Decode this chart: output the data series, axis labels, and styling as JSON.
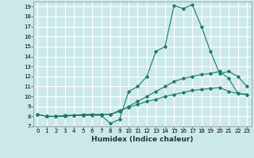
{
  "title": "",
  "xlabel": "Humidex (Indice chaleur)",
  "ylabel": "",
  "bg_color": "#cce9e9",
  "grid_color": "#ffffff",
  "line_color": "#1a7a6e",
  "xlim": [
    -0.5,
    23.5
  ],
  "ylim": [
    7,
    19.5
  ],
  "xticks": [
    0,
    1,
    2,
    3,
    4,
    5,
    6,
    7,
    8,
    9,
    10,
    11,
    12,
    13,
    14,
    15,
    16,
    17,
    18,
    19,
    20,
    21,
    22,
    23
  ],
  "yticks": [
    7,
    8,
    9,
    10,
    11,
    12,
    13,
    14,
    15,
    16,
    17,
    18,
    19
  ],
  "line1_x": [
    0,
    1,
    2,
    3,
    4,
    5,
    6,
    7,
    8,
    9,
    10,
    11,
    12,
    13,
    14,
    15,
    16,
    17,
    18,
    19,
    20,
    21,
    22,
    23
  ],
  "line1_y": [
    8.2,
    8.0,
    8.0,
    8.0,
    8.1,
    8.1,
    8.1,
    8.1,
    7.3,
    7.7,
    10.5,
    11.0,
    12.0,
    14.5,
    15.0,
    19.1,
    18.8,
    19.2,
    17.0,
    14.5,
    12.3,
    12.5,
    12.0,
    11.0
  ],
  "line2_x": [
    0,
    1,
    2,
    3,
    4,
    5,
    6,
    7,
    8,
    9,
    10,
    11,
    12,
    13,
    14,
    15,
    16,
    17,
    18,
    19,
    20,
    21,
    22,
    23
  ],
  "line2_y": [
    8.2,
    8.0,
    8.0,
    8.1,
    8.1,
    8.2,
    8.2,
    8.2,
    8.2,
    8.5,
    9.0,
    9.5,
    10.0,
    10.5,
    11.0,
    11.5,
    11.8,
    12.0,
    12.2,
    12.3,
    12.5,
    11.8,
    10.3,
    10.2
  ],
  "line3_x": [
    0,
    1,
    2,
    3,
    4,
    5,
    6,
    7,
    8,
    9,
    10,
    11,
    12,
    13,
    14,
    15,
    16,
    17,
    18,
    19,
    20,
    21,
    22,
    23
  ],
  "line3_y": [
    8.2,
    8.0,
    8.0,
    8.1,
    8.1,
    8.1,
    8.2,
    8.2,
    8.2,
    8.6,
    8.9,
    9.2,
    9.5,
    9.7,
    10.0,
    10.2,
    10.4,
    10.6,
    10.7,
    10.8,
    10.9,
    10.5,
    10.3,
    10.2
  ],
  "tick_fontsize": 5,
  "xlabel_fontsize": 6.5
}
